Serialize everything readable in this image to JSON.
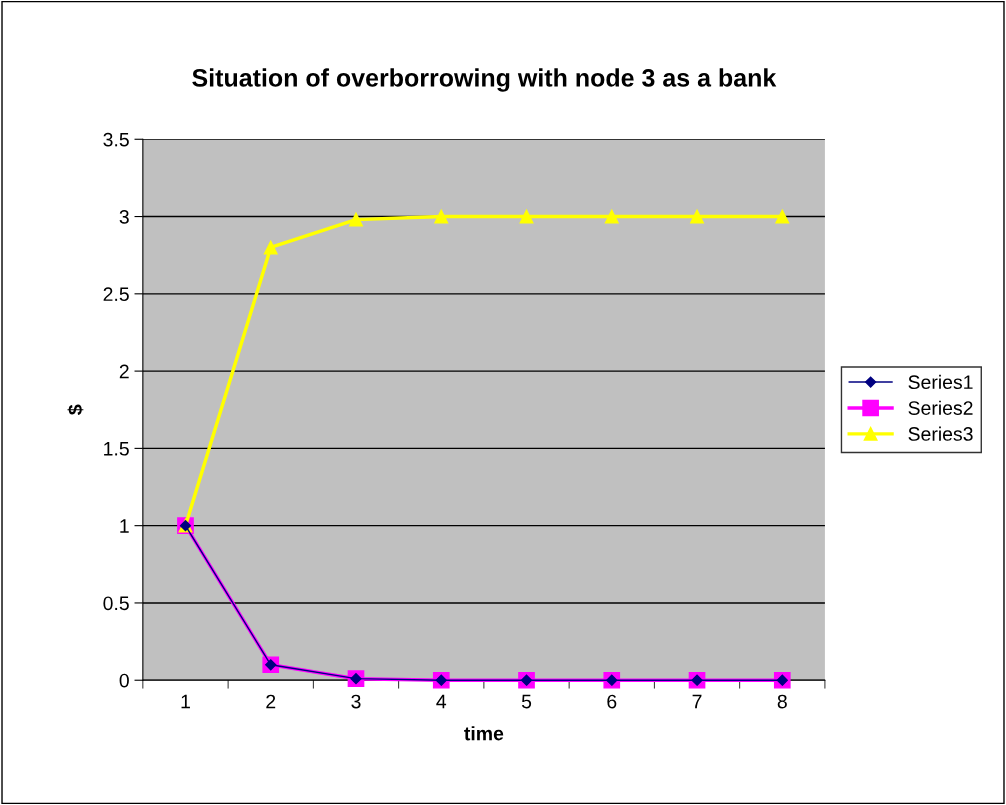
{
  "chart_data": {
    "type": "line",
    "title": "Situation of overborrowing with node 3 as a bank",
    "xlabel": "time",
    "ylabel": "$",
    "categories": [
      "1",
      "2",
      "3",
      "4",
      "5",
      "6",
      "7",
      "8"
    ],
    "series": [
      {
        "name": "Series1",
        "color": "#000080",
        "marker": "diamond",
        "values": [
          1,
          0.1,
          0.01,
          0,
          0,
          0,
          0,
          0
        ]
      },
      {
        "name": "Series2",
        "color": "#ff00ff",
        "marker": "square",
        "values": [
          1,
          0.1,
          0.01,
          0,
          0,
          0,
          0,
          0
        ]
      },
      {
        "name": "Series3",
        "color": "#ffff00",
        "marker": "triangle",
        "values": [
          1,
          2.8,
          2.98,
          3,
          3,
          3,
          3,
          3
        ]
      }
    ],
    "ylim": [
      0,
      3.5
    ],
    "yticks": [
      0,
      0.5,
      1,
      1.5,
      2,
      2.5,
      3,
      3.5
    ],
    "grid": "y",
    "legend": "right",
    "line_style": "solid"
  }
}
